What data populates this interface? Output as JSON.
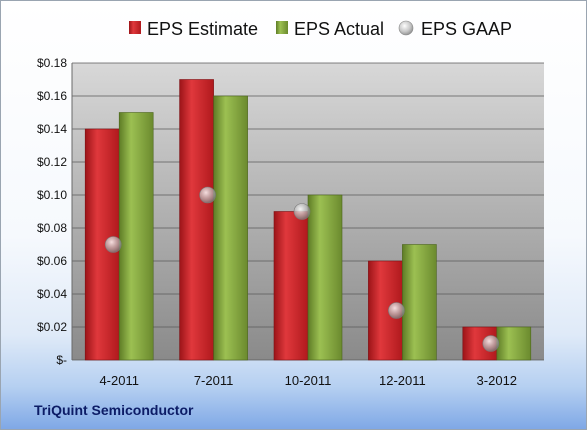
{
  "company": "TriQuint Semiconductor",
  "legend": {
    "estimate": "EPS Estimate",
    "actual": "EPS Actual",
    "gaap": "EPS GAAP"
  },
  "colors": {
    "estimate": "#cc1f24",
    "actual": "#7fa23a",
    "gaap": "#a8a8a8",
    "plot_bg_top": "#d4d4d4",
    "plot_bg_bottom": "#8e8e8e"
  },
  "chart_data": {
    "type": "bar",
    "categories": [
      "4-2011",
      "7-2011",
      "10-2011",
      "12-2011",
      "3-2012"
    ],
    "series": [
      {
        "name": "EPS Estimate",
        "type": "bar",
        "values": [
          0.14,
          0.17,
          0.09,
          0.06,
          0.02
        ]
      },
      {
        "name": "EPS Actual",
        "type": "bar",
        "values": [
          0.15,
          0.16,
          0.1,
          0.07,
          0.02
        ]
      },
      {
        "name": "EPS GAAP",
        "type": "scatter",
        "values": [
          0.07,
          0.1,
          0.09,
          0.03,
          0.01
        ]
      }
    ],
    "yticks": [
      "$-",
      "$0.02",
      "$0.04",
      "$0.06",
      "$0.08",
      "$0.10",
      "$0.12",
      "$0.14",
      "$0.16",
      "$0.18"
    ],
    "ylim": [
      0,
      0.18
    ],
    "grid": true,
    "legend_position": "top"
  }
}
